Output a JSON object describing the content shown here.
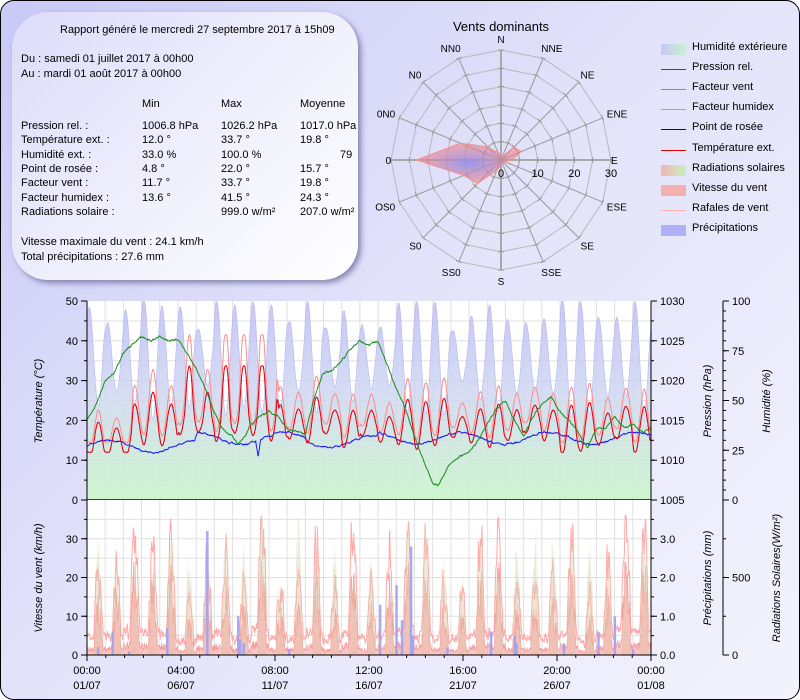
{
  "report": {
    "generated": "Rapport généré le mercredi 27 septembre 2017 à 15h09",
    "from": "Du : samedi 01 juillet 2017 à 00h00",
    "to": "Au : mardi 01 août 2017 à 00h00",
    "columns": [
      "Min",
      "Max",
      "Moyenne"
    ],
    "rows": [
      {
        "label": "Pression rel. :",
        "min": "1006.8 hPa",
        "max": "1026.2 hPa",
        "avg": "1017.0 hPa"
      },
      {
        "label": "Température ext. :",
        "min": "12.0 °",
        "max": "33.7 °",
        "avg": "19.8 °"
      },
      {
        "label": "Humidité ext. :",
        "min": "33.0 %",
        "max": "100.0 %",
        "avg": "79"
      },
      {
        "label": "Point de rosée :",
        "min": "4.8 °",
        "max": "22.0 °",
        "avg": "15.7 °"
      },
      {
        "label": "Facteur vent :",
        "min": "11.7 °",
        "max": "33.7 °",
        "avg": "19.8 °"
      },
      {
        "label": "Facteur humidex :",
        "min": "13.6 °",
        "max": "41.5 °",
        "avg": "24.3 °"
      },
      {
        "label": "Radiations solaire :",
        "min": "",
        "max": "999.0 w/m²",
        "avg": "207.0 w/m²"
      }
    ],
    "max_wind": "Vitesse maximale du vent : 24.1 km/h",
    "total_precip": "Total précipitations : 27.6 mm"
  },
  "legend": [
    {
      "label": "Humidité extérieure",
      "kind": "area",
      "color": "#c8c8f4",
      "color2": "#c8f0d0"
    },
    {
      "label": "Pression rel.",
      "kind": "line",
      "color": "#008000"
    },
    {
      "label": "Facteur vent",
      "kind": "line",
      "color": "#8080ff"
    },
    {
      "label": "Facteur humidex",
      "kind": "line",
      "color": "#ff8080"
    },
    {
      "label": "Point de rosée",
      "kind": "line",
      "color": "#0000cc"
    },
    {
      "label": "Température ext.",
      "kind": "line",
      "color": "#e00000"
    },
    {
      "label": "Radiations solaires",
      "kind": "area",
      "color": "#f4b4b4",
      "color2": "#c8f0c0"
    },
    {
      "label": "Vitesse du vent",
      "kind": "area",
      "color": "#f4b0b0",
      "color2": "#f4b0b0"
    },
    {
      "label": "Rafales de vent",
      "kind": "line",
      "color": "#ffb0b0"
    },
    {
      "label": "Précipitations",
      "kind": "area",
      "color": "#b0b0f8",
      "color2": "#b0b0f8"
    }
  ],
  "chart_data": [
    {
      "type": "radar",
      "title": "Vents dominants",
      "directions": [
        "N",
        "NNE",
        "NE",
        "ENE",
        "E",
        "ESE",
        "SE",
        "SSE",
        "S",
        "SSO",
        "SO",
        "OSO",
        "O",
        "ONO",
        "NO",
        "NNO"
      ],
      "direction_labels": [
        "N",
        "NNE",
        "NE",
        "ENE",
        "E",
        "ESE",
        "SE",
        "SSE",
        "S",
        "SS0",
        "S0",
        "OS0",
        "0",
        "0N0",
        "N0",
        "NN0"
      ],
      "values": [
        1.5,
        1,
        5,
        6,
        3,
        1,
        1,
        1,
        1.5,
        3,
        9,
        11,
        23,
        12,
        5,
        2
      ],
      "rlim": [
        0,
        30
      ],
      "r_ticks": [
        "0",
        "10",
        "20",
        "30"
      ],
      "rings": 6,
      "fill_color": "#f08080",
      "center_color": "#9090f0"
    },
    {
      "type": "line",
      "title": "",
      "x_range": [
        "01/07 00:00",
        "01/08 00:00"
      ],
      "x_days": 31,
      "x_ticks": [
        {
          "day": 0,
          "time": "00:00",
          "date": "01/07"
        },
        {
          "day": 5.1667,
          "time": "04:00",
          "date": "06/07"
        },
        {
          "day": 10.3333,
          "time": "08:00",
          "date": "11/07"
        },
        {
          "day": 15.5,
          "time": "12:00",
          "date": "16/07"
        },
        {
          "day": 20.6667,
          "time": "16:00",
          "date": "21/07"
        },
        {
          "day": 25.8333,
          "time": "20:00",
          "date": "26/07"
        },
        {
          "day": 31,
          "time": "00:00",
          "date": "01/08"
        }
      ],
      "axes": {
        "temperature": {
          "label": "Température (°C)",
          "range": [
            0,
            50
          ],
          "ticks": [
            0,
            10,
            20,
            30,
            40,
            50
          ]
        },
        "pressure": {
          "label": "Pression (hPa)",
          "range": [
            1005,
            1030
          ],
          "ticks": [
            1005,
            1010,
            1015,
            1020,
            1025,
            1030
          ]
        },
        "humidity": {
          "label": "Humidité (%)",
          "range": [
            0,
            100
          ],
          "ticks": [
            0,
            25,
            50,
            75,
            100
          ]
        }
      },
      "series": [
        {
          "name": "Humidité extérieure",
          "axis": "humidity",
          "kind": "area",
          "approx": {
            "base": 72,
            "amp": 22,
            "period_days": 1,
            "min": 33,
            "max": 100
          }
        },
        {
          "name": "Pression rel.",
          "axis": "pressure",
          "points": [
            [
              0,
              1015
            ],
            [
              0.5,
              1017
            ],
            [
              1,
              1020
            ],
            [
              1.5,
              1021
            ],
            [
              2,
              1023.5
            ],
            [
              2.5,
              1024.5
            ],
            [
              3,
              1025.5
            ],
            [
              3.5,
              1025
            ],
            [
              4,
              1025.5
            ],
            [
              4.5,
              1025
            ],
            [
              5,
              1025.2
            ],
            [
              5.5,
              1023.5
            ],
            [
              6,
              1021.5
            ],
            [
              6.5,
              1019
            ],
            [
              7,
              1016
            ],
            [
              7.5,
              1013.7
            ],
            [
              8,
              1013
            ],
            [
              8.3,
              1012
            ],
            [
              8.7,
              1013
            ],
            [
              9,
              1014.5
            ],
            [
              9.5,
              1015.5
            ],
            [
              10,
              1016.2
            ],
            [
              10.5,
              1015.5
            ],
            [
              11,
              1014
            ],
            [
              11.5,
              1013.7
            ],
            [
              12,
              1013.3
            ],
            [
              12.5,
              1018
            ],
            [
              13,
              1021
            ],
            [
              13.5,
              1021.3
            ],
            [
              14,
              1022.5
            ],
            [
              14.5,
              1024
            ],
            [
              15,
              1025
            ],
            [
              15.5,
              1024.5
            ],
            [
              16,
              1025
            ],
            [
              16.5,
              1022
            ],
            [
              17,
              1019
            ],
            [
              17.5,
              1016.5
            ],
            [
              18,
              1013
            ],
            [
              18.5,
              1010
            ],
            [
              19,
              1007
            ],
            [
              19.3,
              1006.8
            ],
            [
              19.7,
              1008.5
            ],
            [
              20,
              1009.7
            ],
            [
              20.5,
              1010.5
            ],
            [
              21,
              1011
            ],
            [
              21.5,
              1012.5
            ],
            [
              22,
              1014.5
            ],
            [
              22.5,
              1016.5
            ],
            [
              23,
              1017.5
            ],
            [
              23.5,
              1015
            ],
            [
              24,
              1013
            ],
            [
              24.5,
              1015.5
            ],
            [
              25,
              1017
            ],
            [
              25.5,
              1018
            ],
            [
              26,
              1016
            ],
            [
              26.5,
              1015
            ],
            [
              27,
              1013.5
            ],
            [
              27.5,
              1011.5
            ],
            [
              28,
              1014
            ],
            [
              28.5,
              1014
            ],
            [
              29,
              1015.5
            ],
            [
              29.5,
              1014
            ],
            [
              30,
              1014.5
            ],
            [
              30.5,
              1013.5
            ],
            [
              31,
              1014
            ]
          ]
        },
        {
          "name": "Facteur vent",
          "axis": "temperature",
          "hidden_under": "Température ext."
        },
        {
          "name": "Facteur humidex",
          "axis": "temperature",
          "approx": {
            "base": 22,
            "amp": 5,
            "period_days": 1,
            "min": 13.6,
            "max": 41.5
          }
        },
        {
          "name": "Point de rosée",
          "axis": "temperature",
          "approx": {
            "base": 15.5,
            "amp": 1.5,
            "period_days": 1,
            "min": 4.8,
            "max": 22.0
          }
        },
        {
          "name": "Température ext.",
          "axis": "temperature",
          "approx": {
            "base": 19,
            "amp": 4.5,
            "period_days": 1,
            "min": 12.0,
            "max": 33.7
          }
        }
      ]
    },
    {
      "type": "area",
      "title": "",
      "axes": {
        "wind": {
          "label": "Vitesse du vent (km/h)",
          "range": [
            0,
            40
          ],
          "ticks": [
            0,
            10,
            20,
            30
          ]
        },
        "precipitation": {
          "label": "Précipitations (mm)",
          "range": [
            0,
            4.0
          ],
          "ticks": [
            "0.0",
            "1.0",
            "2.0",
            "3.0"
          ]
        },
        "radiation": {
          "label": "Radiations Solaires(W/m²)",
          "range": [
            0,
            1000
          ],
          "ticks": [
            0,
            500
          ]
        }
      },
      "series": [
        {
          "name": "Radiations solaires",
          "axis": "radiation",
          "kind": "area",
          "approx": {
            "daily_peak": 850,
            "max": 999
          }
        },
        {
          "name": "Vitesse du vent",
          "axis": "wind",
          "kind": "area",
          "approx": {
            "daily_peak": 15,
            "max": 24.1
          }
        },
        {
          "name": "Rafales de vent",
          "axis": "wind",
          "kind": "line",
          "approx": {
            "daily_peak": 28,
            "max": 35
          }
        },
        {
          "name": "Précipitations",
          "axis": "precipitation",
          "kind": "bar",
          "points": [
            [
              0.6,
              0.2
            ],
            [
              1.4,
              0.6
            ],
            [
              2.3,
              0.1
            ],
            [
              4.4,
              0.7
            ],
            [
              6.6,
              3.2
            ],
            [
              8.3,
              1.0
            ],
            [
              8.4,
              0.4
            ],
            [
              8.6,
              0.3
            ],
            [
              11.1,
              0.15
            ],
            [
              16.1,
              1.3
            ],
            [
              17.0,
              1.8
            ],
            [
              17.3,
              0.9
            ],
            [
              17.8,
              2.8
            ],
            [
              17.9,
              0.5
            ],
            [
              19.8,
              0.2
            ],
            [
              22.2,
              0.6
            ],
            [
              23.5,
              0.5
            ],
            [
              23.6,
              0.3
            ],
            [
              26.2,
              0.3
            ],
            [
              28.1,
              0.6
            ],
            [
              29.0,
              1.0
            ],
            [
              30.0,
              0.15
            ]
          ]
        }
      ]
    }
  ]
}
